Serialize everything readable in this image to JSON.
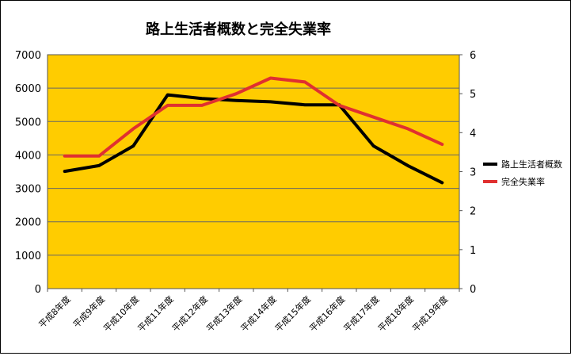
{
  "chart_data": {
    "type": "line",
    "title": "路上生活者概数と完全失業率",
    "categories": [
      "平成8年度",
      "平成9年度",
      "平成10年度",
      "平成11年度",
      "平成12年度",
      "平成13年度",
      "平成14年度",
      "平成15年度",
      "平成16年度",
      "平成17年度",
      "平成18年度",
      "平成19年度"
    ],
    "y_left": {
      "min": 0,
      "max": 7000,
      "ticks": [
        "0",
        "1000",
        "2000",
        "3000",
        "4000",
        "5000",
        "6000",
        "7000"
      ]
    },
    "y_right": {
      "min": 0,
      "max": 6,
      "ticks": [
        "0",
        "1",
        "2",
        "3",
        "4",
        "5",
        "6"
      ]
    },
    "grid": true,
    "legend_position": "right",
    "plot_background": "#FFCC00",
    "series": [
      {
        "name": "路上生活者概数",
        "axis": "left",
        "color": "#000000",
        "values": [
          3510,
          3680,
          4270,
          5800,
          5690,
          5630,
          5590,
          5500,
          5500,
          4270,
          3680,
          3170
        ]
      },
      {
        "name": "完全失業率",
        "axis": "right",
        "color": "#E03030",
        "values": [
          3.4,
          3.4,
          4.1,
          4.7,
          4.7,
          5.0,
          5.4,
          5.3,
          4.7,
          4.4,
          4.1,
          3.7
        ]
      }
    ]
  }
}
